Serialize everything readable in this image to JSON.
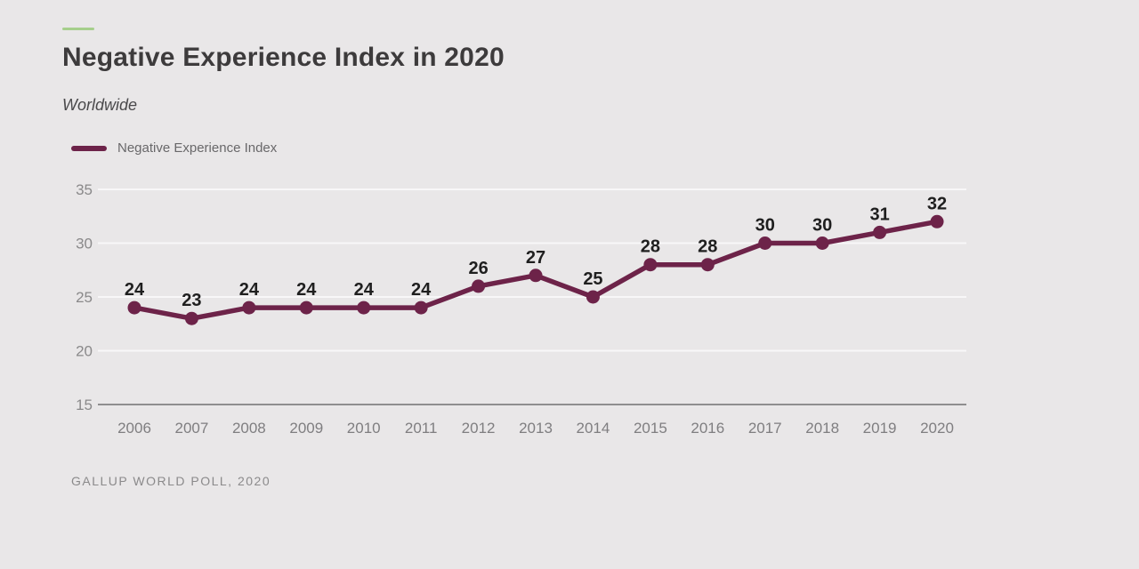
{
  "colors": {
    "background": "#e9e7e8",
    "accent_green": "#a6cf8c",
    "series_line": "#6d2349",
    "data_label": "#1f1f1f",
    "grid_line": "#f8f7f8",
    "baseline": "#8f8e8f",
    "y_tick_label": "#8a898a",
    "x_tick_label": "#7f7e80",
    "title": "#3d3b3c"
  },
  "chart_data": {
    "type": "line",
    "title": "Negative Experience Index in 2020",
    "subtitle": "Worldwide",
    "legend": [
      "Negative Experience Index"
    ],
    "categories": [
      "2006",
      "2007",
      "2008",
      "2009",
      "2010",
      "2011",
      "2012",
      "2013",
      "2014",
      "2015",
      "2016",
      "2017",
      "2018",
      "2019",
      "2020"
    ],
    "series": [
      {
        "name": "Negative Experience Index",
        "values": [
          24,
          23,
          24,
          24,
          24,
          24,
          26,
          27,
          25,
          28,
          28,
          30,
          30,
          31,
          32
        ]
      }
    ],
    "ylim": [
      15,
      35
    ],
    "yticks": [
      15,
      20,
      25,
      30,
      35
    ],
    "grid": "horizontal",
    "legend_position": "top-left",
    "data_labels": true,
    "source": "GALLUP WORLD POLL, 2020"
  }
}
